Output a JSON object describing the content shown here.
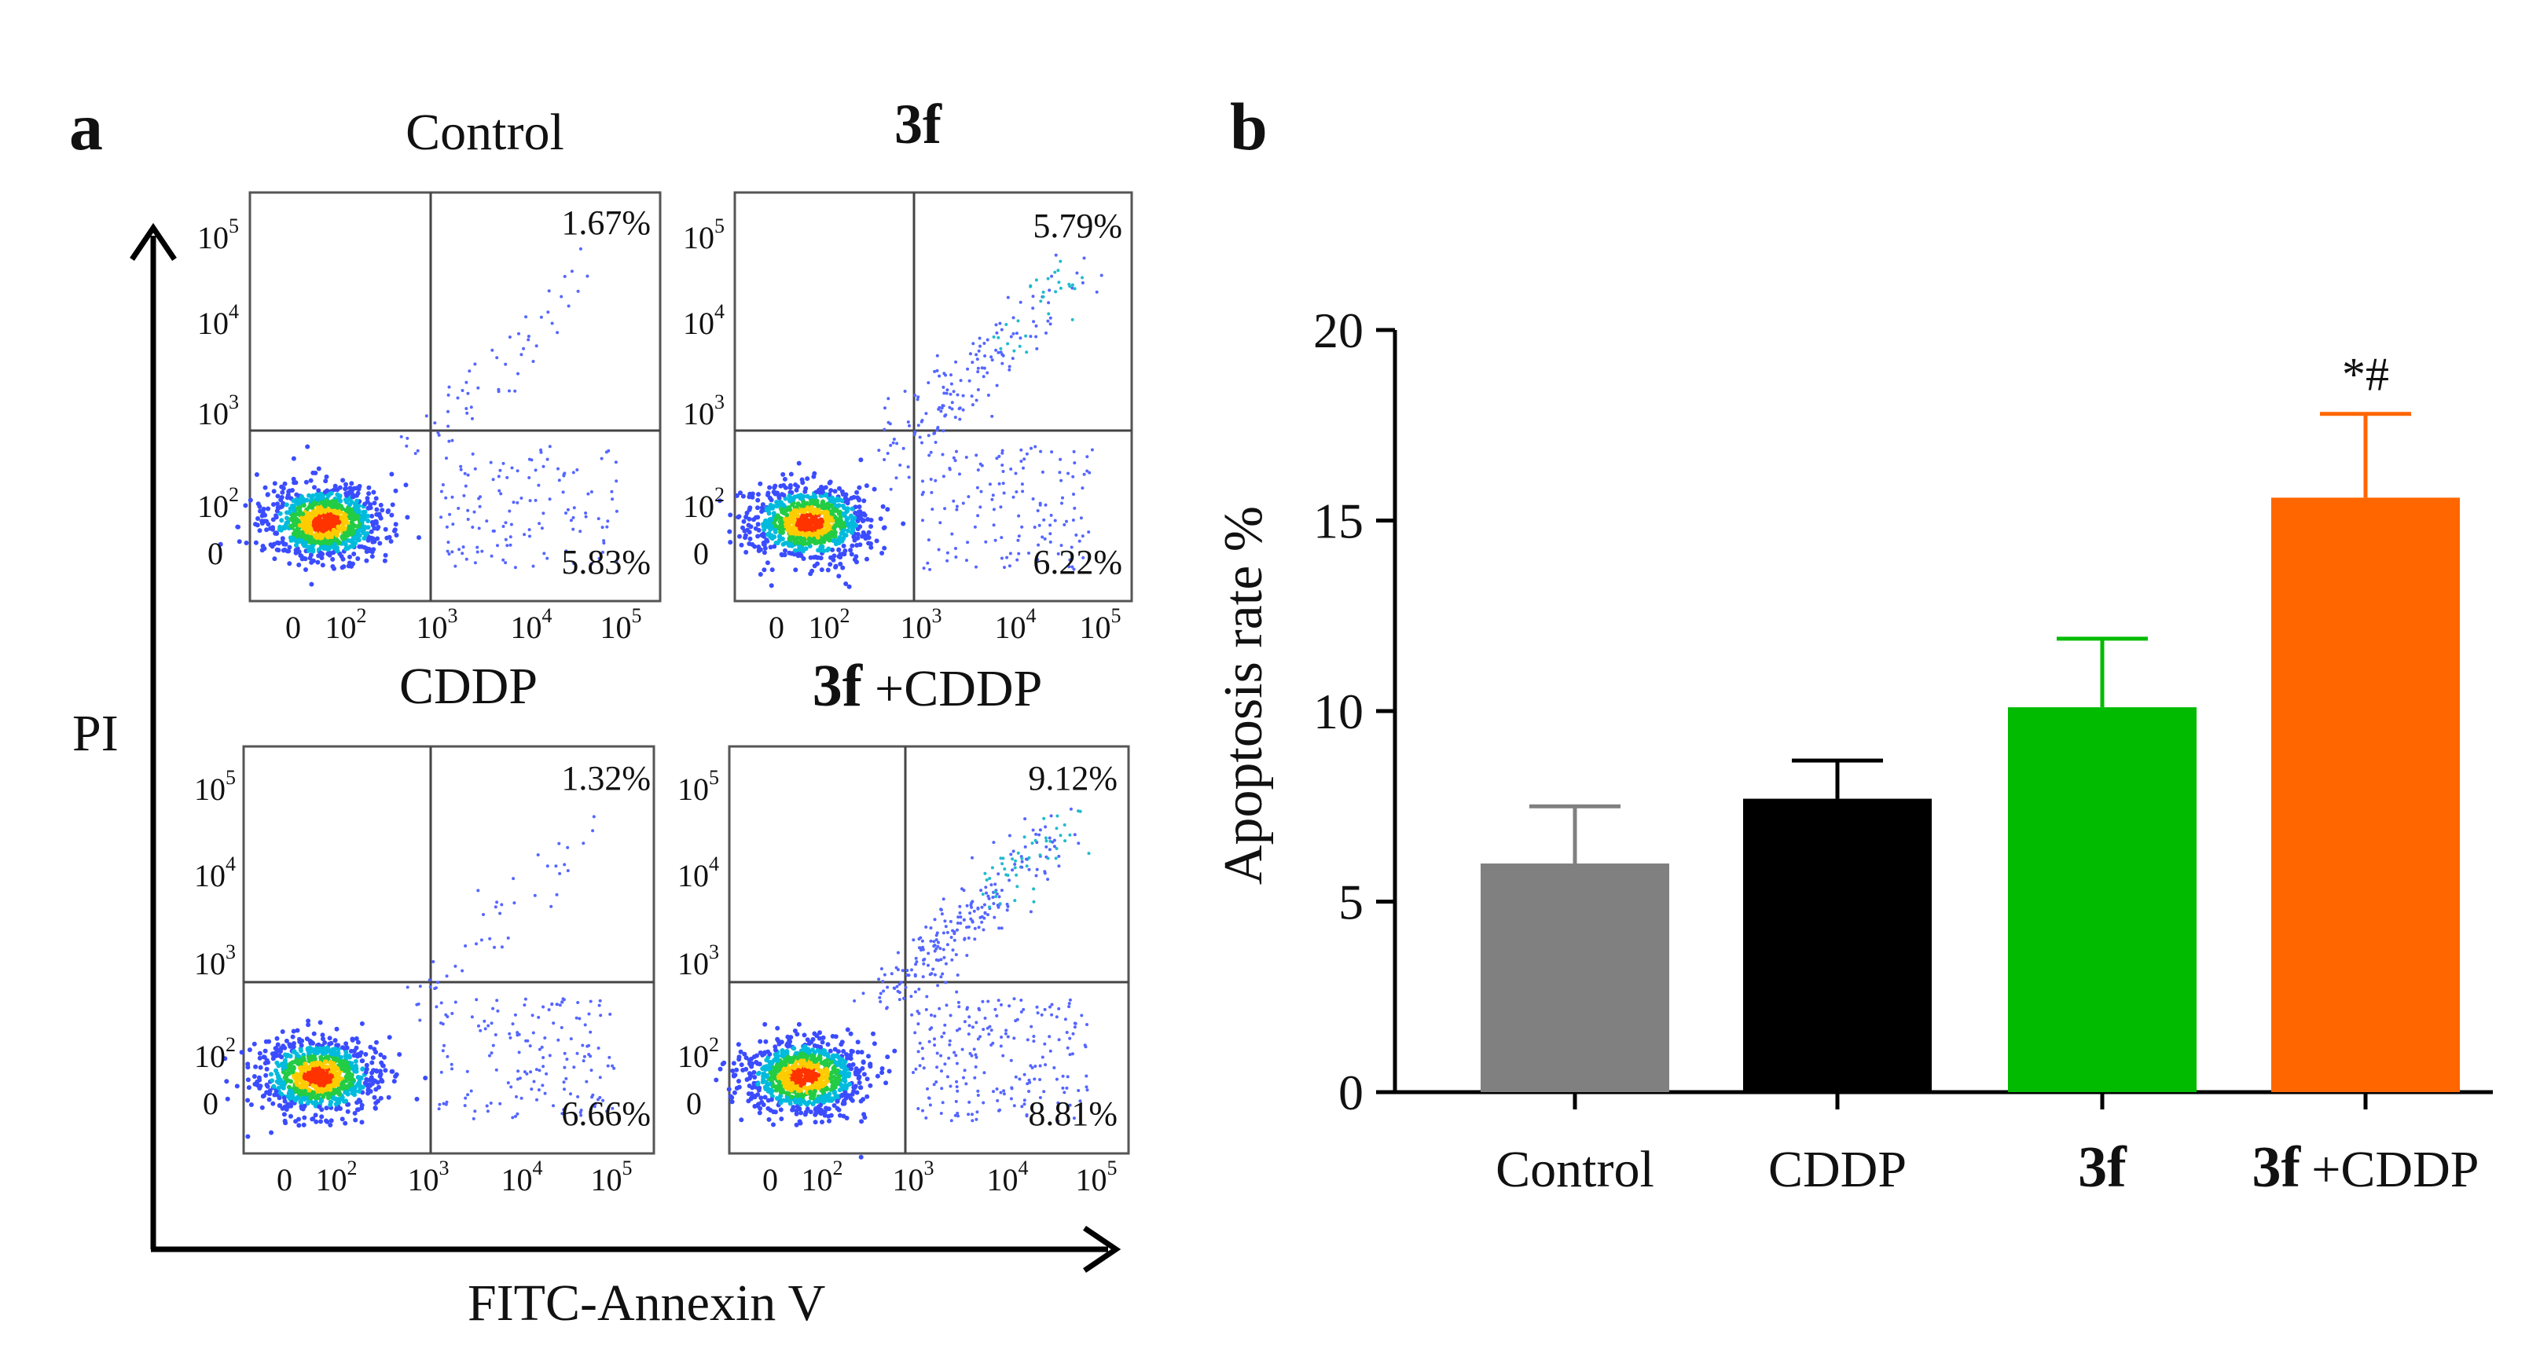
{
  "panel_a": {
    "label": "a",
    "y_axis_label": "PI",
    "x_axis_label": "FITC-Annexin V",
    "plots": [
      {
        "title_bold": "",
        "title_rest": "Control",
        "upper_right": "1.67%",
        "lower_right": "5.83%"
      },
      {
        "title_bold": "3f",
        "title_rest": "",
        "upper_right": "5.79%",
        "lower_right": "6.22%"
      },
      {
        "title_bold": "",
        "title_rest": "CDDP",
        "upper_right": "1.32%",
        "lower_right": "6.66%"
      },
      {
        "title_bold": "3f",
        "title_rest": "+CDDP",
        "upper_right": "9.12%",
        "lower_right": "8.81%"
      }
    ],
    "y_ticks": [
      {
        "base": "10",
        "exp": "5"
      },
      {
        "base": "10",
        "exp": "4"
      },
      {
        "base": "10",
        "exp": "3"
      },
      {
        "base": "10",
        "exp": "2"
      },
      {
        "base": "0",
        "exp": ""
      }
    ],
    "x_ticks": [
      {
        "base": "0",
        "exp": ""
      },
      {
        "base": "10",
        "exp": "2"
      },
      {
        "base": "10",
        "exp": "3"
      },
      {
        "base": "10",
        "exp": "4"
      },
      {
        "base": "10",
        "exp": "5"
      }
    ]
  },
  "chart_data": {
    "type": "bar",
    "panel_label": "b",
    "title": "",
    "xlabel": "",
    "ylabel": "Apoptosis rate %",
    "ylim": [
      0,
      20
    ],
    "yticks": [
      0,
      5,
      10,
      15,
      20
    ],
    "categories": [
      {
        "bold": "",
        "rest": "Control"
      },
      {
        "bold": "",
        "rest": "CDDP"
      },
      {
        "bold": "3f",
        "rest": ""
      },
      {
        "bold": "3f",
        "rest": "+CDDP"
      }
    ],
    "values": [
      6.0,
      7.7,
      10.1,
      15.6
    ],
    "errors": [
      1.5,
      1.0,
      1.8,
      2.2
    ],
    "colors": [
      "#808080",
      "#000000",
      "#00bb00",
      "#ff6600"
    ],
    "annotations": [
      {
        "category_index": 3,
        "text": "*#"
      }
    ]
  }
}
